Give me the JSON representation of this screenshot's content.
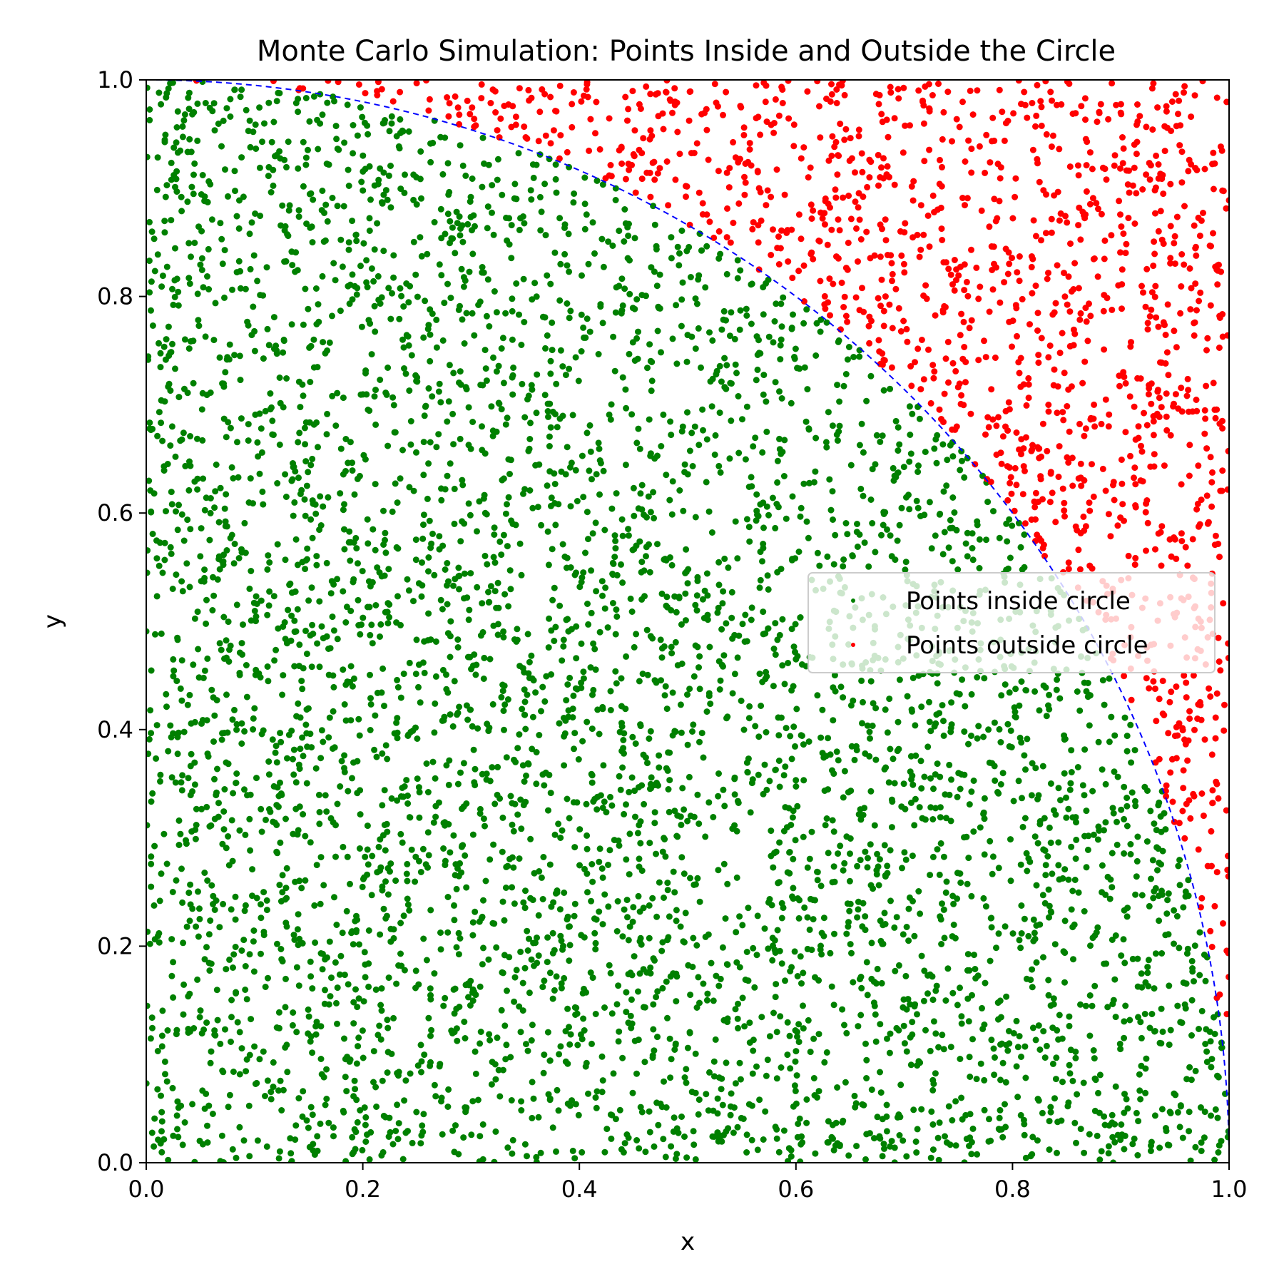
{
  "chart_data": {
    "type": "scatter",
    "title": "Monte Carlo Simulation: Points Inside and Outside the Circle",
    "xlabel": "x",
    "ylabel": "y",
    "xlim": [
      0.0,
      1.0
    ],
    "ylim": [
      0.0,
      1.0
    ],
    "xticks": [
      "0.0",
      "0.2",
      "0.4",
      "0.6",
      "0.8",
      "1.0"
    ],
    "yticks": [
      "0.0",
      "0.2",
      "0.4",
      "0.6",
      "0.8",
      "1.0"
    ],
    "grid": false,
    "legend_position": "center-right",
    "series": [
      {
        "name": "Points inside circle",
        "color": "#008000",
        "marker": "dot",
        "region": "x^2 + y^2 <= 1"
      },
      {
        "name": "Points outside circle",
        "color": "#ff0000",
        "marker": "dot",
        "region": "x^2 + y^2 > 1"
      }
    ],
    "boundary": {
      "shape": "quarter circle x^2 + y^2 = 1",
      "color": "#0000ff",
      "style": "dashed"
    }
  }
}
